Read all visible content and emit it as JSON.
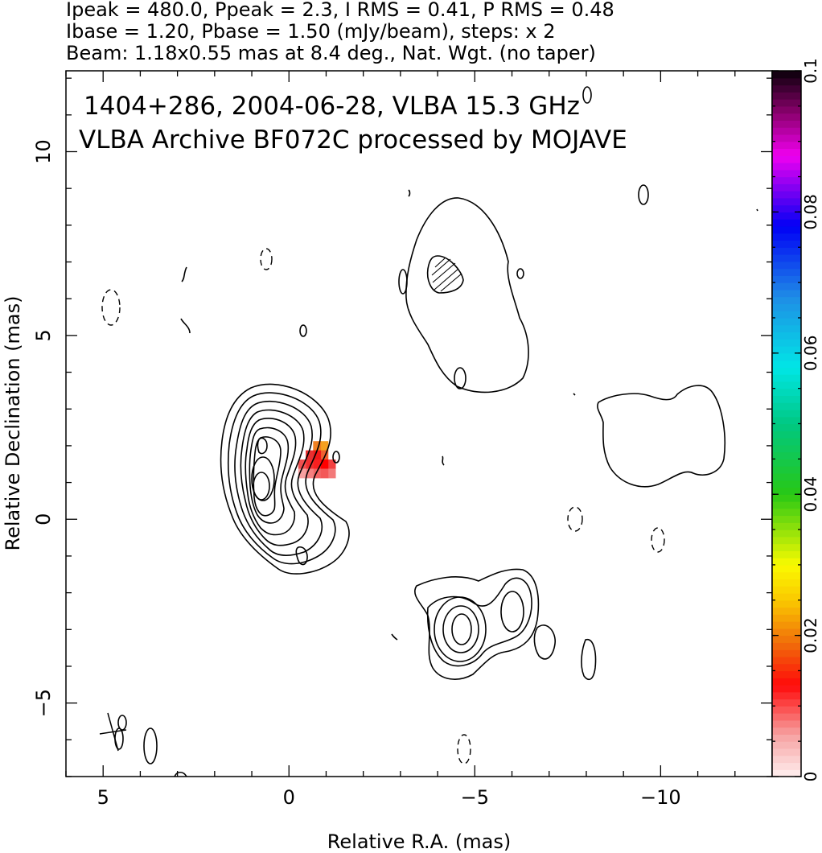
{
  "header": {
    "line1": "Ipeak = 480.0, Ppeak = 2.3, I RMS = 0.41, P RMS = 0.48",
    "line2": "Ibase = 1.20, Pbase = 1.50 (mJy/beam), steps: x 2",
    "line3": "Beam: 1.18x0.55 mas at 8.4 deg., Nat. Wgt. (no taper)"
  },
  "chart_data": {
    "type": "heatmap",
    "title_lines": [
      "1404+286, 2004-06-28, VLBA 15.3 GHz",
      "VLBA Archive BF072C processed by MOJAVE"
    ],
    "xlabel": "Relative R.A. (mas)",
    "ylabel": "Relative Declination (mas)",
    "xlim": [
      6.0,
      -13.0
    ],
    "ylim": [
      -7.0,
      12.2
    ],
    "x_ticks": [
      5,
      0,
      -5,
      -10
    ],
    "x_tick_labels": [
      "5",
      "0",
      "−5",
      "−10"
    ],
    "y_ticks": [
      -5,
      0,
      5,
      10
    ],
    "y_tick_labels": [
      "−5",
      "0",
      "5",
      "10"
    ],
    "colorbar": {
      "range": [
        0,
        0.1
      ],
      "ticks": [
        0,
        0.02,
        0.04,
        0.06,
        0.08,
        0.1
      ],
      "tick_labels": [
        "0",
        "0.02",
        "0.04",
        "0.06",
        "0.08",
        "0.1"
      ],
      "colormap": "pink-red-orange-yellow-green-cyan-blue-magenta-black"
    },
    "contour_levels_mJy_per_beam": [
      -1.2,
      1.2,
      2.4,
      4.8,
      9.6,
      19.2,
      38.4,
      76.8,
      153.6,
      307.2
    ],
    "peak_mJy_per_beam": 480.0,
    "beam": {
      "major_mas": 1.18,
      "minor_mas": 0.55,
      "pa_deg": 8.4,
      "center": [
        5.0,
        -5.8
      ]
    },
    "polarization_patch": [
      {
        "x": -0.95,
        "y": 2.0,
        "color": "#f5a020"
      },
      {
        "x": -0.75,
        "y": 2.0,
        "color": "#f08020"
      },
      {
        "x": -0.95,
        "y": 1.75,
        "color": "#f06030"
      },
      {
        "x": -0.75,
        "y": 1.75,
        "color": "#f01818"
      },
      {
        "x": -0.55,
        "y": 1.75,
        "color": "#e83030"
      },
      {
        "x": -1.15,
        "y": 1.5,
        "color": "#f24040"
      },
      {
        "x": -0.95,
        "y": 1.5,
        "color": "#ff0000"
      },
      {
        "x": -0.75,
        "y": 1.5,
        "color": "#f82020"
      },
      {
        "x": -0.55,
        "y": 1.5,
        "color": "#f03030"
      },
      {
        "x": -0.35,
        "y": 1.5,
        "color": "#f05050"
      },
      {
        "x": -1.15,
        "y": 1.25,
        "color": "#f37a7a"
      },
      {
        "x": -0.95,
        "y": 1.25,
        "color": "#f35858"
      },
      {
        "x": -0.75,
        "y": 1.25,
        "color": "#f26464"
      },
      {
        "x": -0.55,
        "y": 1.25,
        "color": "#f48080"
      },
      {
        "x": -0.35,
        "y": 1.25,
        "color": "#f7a0a0"
      }
    ]
  }
}
